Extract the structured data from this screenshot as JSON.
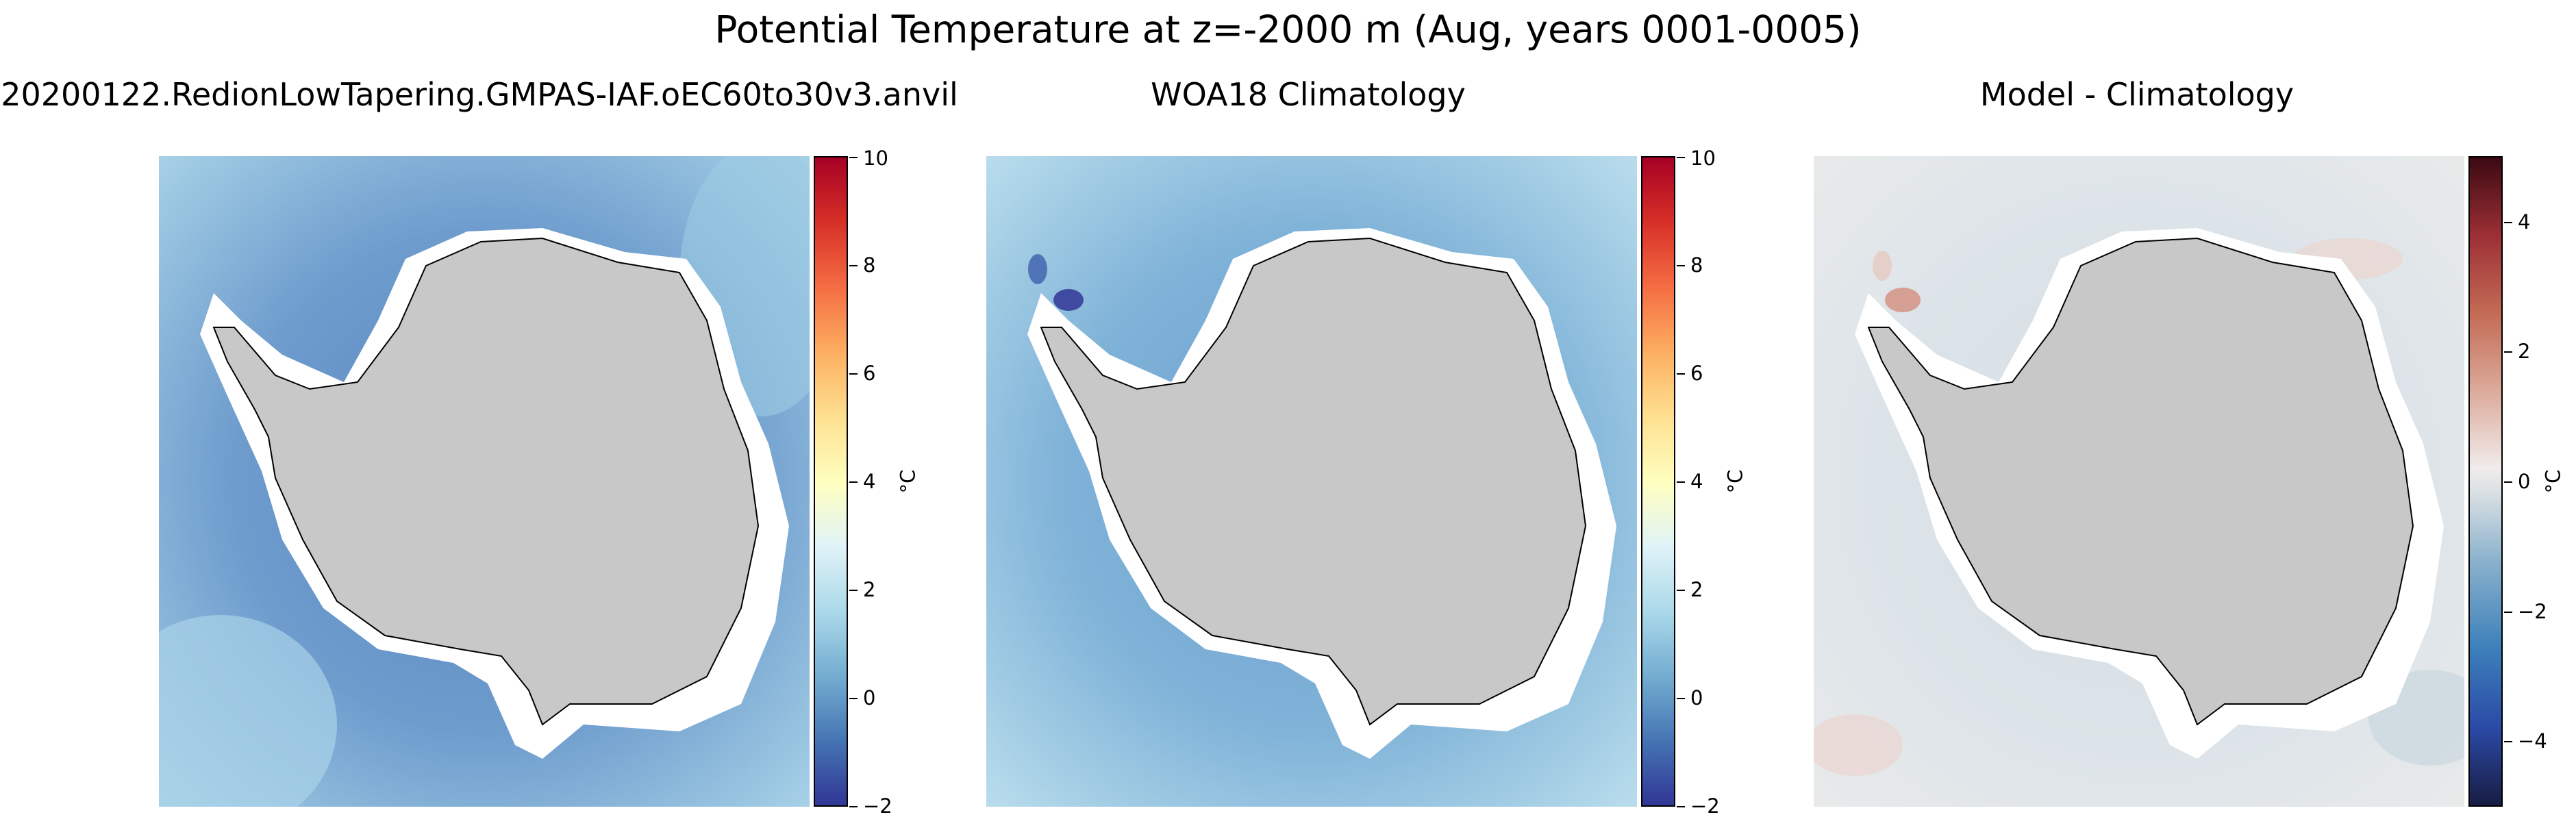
{
  "suptitle": "Potential Temperature at z=-2000 m (Aug, years 0001-0005)",
  "panels": [
    {
      "title": "20200122.RedionLowTapering.GMPAS-IAF.oEC60to30v3.anvil",
      "field": "model",
      "colormap": "RdYlBu_r",
      "colorbar": {
        "unit": "°C",
        "range": [
          -2,
          10
        ],
        "ticks": [
          {
            "value": -2,
            "label": "−2"
          },
          {
            "value": 0,
            "label": "0"
          },
          {
            "value": 2,
            "label": "2"
          },
          {
            "value": 4,
            "label": "4"
          },
          {
            "value": 6,
            "label": "6"
          },
          {
            "value": 8,
            "label": "8"
          },
          {
            "value": 10,
            "label": "10"
          }
        ]
      }
    },
    {
      "title": "WOA18 Climatology",
      "field": "observations",
      "colormap": "RdYlBu_r",
      "colorbar": {
        "unit": "°C",
        "range": [
          -2,
          10
        ],
        "ticks": [
          {
            "value": -2,
            "label": "−2"
          },
          {
            "value": 0,
            "label": "0"
          },
          {
            "value": 2,
            "label": "2"
          },
          {
            "value": 4,
            "label": "4"
          },
          {
            "value": 6,
            "label": "6"
          },
          {
            "value": 8,
            "label": "8"
          },
          {
            "value": 10,
            "label": "10"
          }
        ]
      }
    },
    {
      "title": "Model - Climatology",
      "field": "bias",
      "colormap": "balance",
      "colorbar": {
        "unit": "°C",
        "range": [
          -5,
          5
        ],
        "ticks": [
          {
            "value": -4,
            "label": "−4"
          },
          {
            "value": -2,
            "label": "−2"
          },
          {
            "value": 0,
            "label": "0"
          },
          {
            "value": 2,
            "label": "2"
          },
          {
            "value": 4,
            "label": "4"
          }
        ]
      }
    }
  ],
  "colors": {
    "land": "#c8c8c8",
    "coastline": "#000000",
    "no_data": "#ffffff",
    "model_ocean": "#7aa6d2",
    "obs_ocean": "#8cbadb",
    "bias_ocean": "#e2e8ec",
    "rdylbu_r": [
      "#313695",
      "#4575b4",
      "#74add1",
      "#abd9e9",
      "#e0f3f8",
      "#ffffbf",
      "#fee090",
      "#fdae61",
      "#f46d43",
      "#d73027",
      "#a50026"
    ],
    "balance": [
      "#181c43",
      "#2b4aa6",
      "#3b7fba",
      "#8cb3cd",
      "#d8dfe3",
      "#f1ecec",
      "#dcaa9a",
      "#c36b55",
      "#9c2f35",
      "#3c0912"
    ]
  }
}
